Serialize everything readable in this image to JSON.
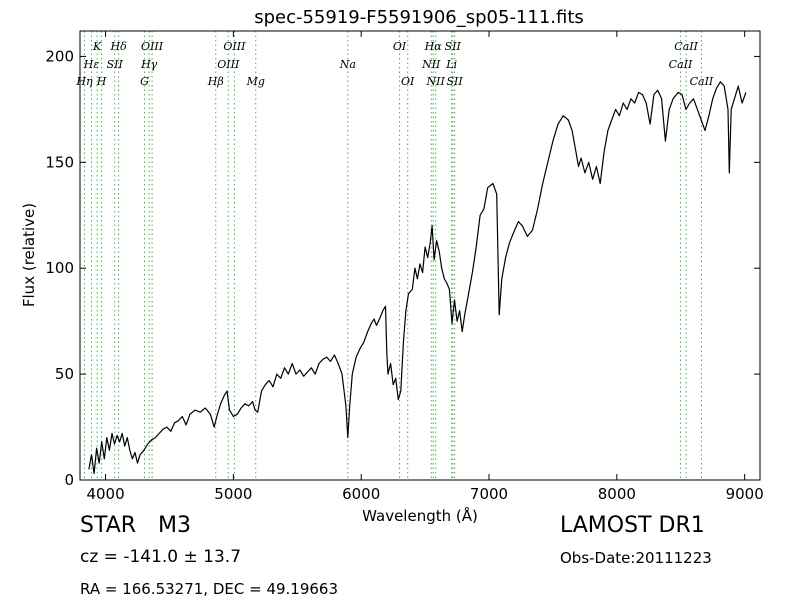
{
  "chart_data": {
    "type": "line",
    "title": "spec-55919-F5591906_sp05-111.fits",
    "xlabel": "Wavelength (Å)",
    "ylabel": "Flux (relative)",
    "xlim": [
      3800,
      9120
    ],
    "ylim": [
      0,
      212
    ],
    "grid": false,
    "x_ticks": [
      4000,
      5000,
      6000,
      7000,
      8000,
      9000
    ],
    "y_ticks": [
      0,
      50,
      100,
      150,
      200
    ],
    "series": [
      {
        "color": "#000000",
        "points": [
          [
            3870,
            5
          ],
          [
            3890,
            12
          ],
          [
            3910,
            3
          ],
          [
            3930,
            15
          ],
          [
            3950,
            8
          ],
          [
            3970,
            18
          ],
          [
            3990,
            10
          ],
          [
            4010,
            20
          ],
          [
            4030,
            14
          ],
          [
            4050,
            22
          ],
          [
            4070,
            17
          ],
          [
            4090,
            21
          ],
          [
            4110,
            18
          ],
          [
            4130,
            22
          ],
          [
            4150,
            16
          ],
          [
            4170,
            20
          ],
          [
            4190,
            14
          ],
          [
            4210,
            10
          ],
          [
            4230,
            13
          ],
          [
            4250,
            8
          ],
          [
            4270,
            12
          ],
          [
            4300,
            14
          ],
          [
            4330,
            17
          ],
          [
            4360,
            19
          ],
          [
            4390,
            20
          ],
          [
            4420,
            22
          ],
          [
            4450,
            24
          ],
          [
            4480,
            25
          ],
          [
            4510,
            23
          ],
          [
            4540,
            27
          ],
          [
            4570,
            28
          ],
          [
            4600,
            30
          ],
          [
            4630,
            26
          ],
          [
            4660,
            31
          ],
          [
            4700,
            33
          ],
          [
            4740,
            32
          ],
          [
            4780,
            34
          ],
          [
            4820,
            31
          ],
          [
            4850,
            25
          ],
          [
            4870,
            30
          ],
          [
            4900,
            36
          ],
          [
            4930,
            40
          ],
          [
            4950,
            42
          ],
          [
            4970,
            33
          ],
          [
            5000,
            30
          ],
          [
            5030,
            31
          ],
          [
            5060,
            34
          ],
          [
            5090,
            36
          ],
          [
            5120,
            35
          ],
          [
            5150,
            37
          ],
          [
            5170,
            33
          ],
          [
            5190,
            32
          ],
          [
            5220,
            42
          ],
          [
            5250,
            45
          ],
          [
            5280,
            47
          ],
          [
            5310,
            44
          ],
          [
            5340,
            50
          ],
          [
            5370,
            48
          ],
          [
            5400,
            53
          ],
          [
            5430,
            50
          ],
          [
            5460,
            55
          ],
          [
            5490,
            50
          ],
          [
            5520,
            52
          ],
          [
            5550,
            49
          ],
          [
            5580,
            51
          ],
          [
            5610,
            53
          ],
          [
            5640,
            50
          ],
          [
            5670,
            55
          ],
          [
            5700,
            57
          ],
          [
            5730,
            58
          ],
          [
            5760,
            56
          ],
          [
            5790,
            59
          ],
          [
            5820,
            55
          ],
          [
            5850,
            50
          ],
          [
            5880,
            35
          ],
          [
            5895,
            20
          ],
          [
            5910,
            35
          ],
          [
            5930,
            50
          ],
          [
            5960,
            58
          ],
          [
            5990,
            62
          ],
          [
            6020,
            65
          ],
          [
            6050,
            70
          ],
          [
            6080,
            74
          ],
          [
            6100,
            76
          ],
          [
            6120,
            73
          ],
          [
            6150,
            77
          ],
          [
            6170,
            80
          ],
          [
            6190,
            82
          ],
          [
            6200,
            60
          ],
          [
            6210,
            50
          ],
          [
            6230,
            55
          ],
          [
            6250,
            45
          ],
          [
            6270,
            48
          ],
          [
            6290,
            38
          ],
          [
            6310,
            42
          ],
          [
            6330,
            65
          ],
          [
            6350,
            80
          ],
          [
            6370,
            88
          ],
          [
            6400,
            90
          ],
          [
            6420,
            100
          ],
          [
            6440,
            95
          ],
          [
            6460,
            102
          ],
          [
            6480,
            98
          ],
          [
            6500,
            110
          ],
          [
            6520,
            105
          ],
          [
            6540,
            112
          ],
          [
            6555,
            120
          ],
          [
            6570,
            104
          ],
          [
            6590,
            113
          ],
          [
            6610,
            108
          ],
          [
            6630,
            100
          ],
          [
            6650,
            95
          ],
          [
            6670,
            93
          ],
          [
            6690,
            90
          ],
          [
            6710,
            74
          ],
          [
            6730,
            85
          ],
          [
            6750,
            75
          ],
          [
            6770,
            80
          ],
          [
            6790,
            70
          ],
          [
            6810,
            78
          ],
          [
            6840,
            88
          ],
          [
            6870,
            98
          ],
          [
            6900,
            110
          ],
          [
            6930,
            125
          ],
          [
            6960,
            128
          ],
          [
            6990,
            138
          ],
          [
            7030,
            140
          ],
          [
            7060,
            135
          ],
          [
            7080,
            78
          ],
          [
            7100,
            95
          ],
          [
            7130,
            105
          ],
          [
            7160,
            112
          ],
          [
            7200,
            118
          ],
          [
            7230,
            122
          ],
          [
            7260,
            120
          ],
          [
            7300,
            115
          ],
          [
            7340,
            118
          ],
          [
            7380,
            128
          ],
          [
            7420,
            140
          ],
          [
            7460,
            150
          ],
          [
            7500,
            160
          ],
          [
            7540,
            168
          ],
          [
            7580,
            172
          ],
          [
            7620,
            170
          ],
          [
            7650,
            165
          ],
          [
            7680,
            155
          ],
          [
            7700,
            148
          ],
          [
            7720,
            152
          ],
          [
            7750,
            145
          ],
          [
            7780,
            150
          ],
          [
            7810,
            142
          ],
          [
            7840,
            148
          ],
          [
            7870,
            140
          ],
          [
            7900,
            155
          ],
          [
            7930,
            165
          ],
          [
            7960,
            170
          ],
          [
            7990,
            175
          ],
          [
            8020,
            172
          ],
          [
            8050,
            178
          ],
          [
            8080,
            175
          ],
          [
            8110,
            180
          ],
          [
            8140,
            178
          ],
          [
            8170,
            183
          ],
          [
            8200,
            182
          ],
          [
            8230,
            178
          ],
          [
            8260,
            168
          ],
          [
            8290,
            182
          ],
          [
            8320,
            184
          ],
          [
            8350,
            180
          ],
          [
            8380,
            160
          ],
          [
            8410,
            175
          ],
          [
            8440,
            180
          ],
          [
            8480,
            183
          ],
          [
            8510,
            182
          ],
          [
            8540,
            175
          ],
          [
            8570,
            178
          ],
          [
            8600,
            180
          ],
          [
            8630,
            175
          ],
          [
            8660,
            170
          ],
          [
            8690,
            165
          ],
          [
            8720,
            172
          ],
          [
            8750,
            180
          ],
          [
            8780,
            185
          ],
          [
            8810,
            188
          ],
          [
            8840,
            186
          ],
          [
            8870,
            175
          ],
          [
            8880,
            145
          ],
          [
            8895,
            175
          ],
          [
            8920,
            180
          ],
          [
            8950,
            186
          ],
          [
            8980,
            178
          ],
          [
            9010,
            183
          ]
        ]
      }
    ],
    "lines": [
      {
        "label": "Hη",
        "x": 3835,
        "row": 3
      },
      {
        "label": "Hε",
        "x": 3890,
        "row": 2
      },
      {
        "label": "K",
        "x": 3934,
        "row": 1
      },
      {
        "label": "H",
        "x": 3969,
        "row": 3
      },
      {
        "label": "SII",
        "x": 4072,
        "row": 2
      },
      {
        "label": "Hδ",
        "x": 4102,
        "row": 1
      },
      {
        "label": "G",
        "x": 4305,
        "row": 3
      },
      {
        "label": "Hγ",
        "x": 4341,
        "row": 2
      },
      {
        "label": "OIII",
        "x": 4364,
        "row": 1
      },
      {
        "label": "Hβ",
        "x": 4862,
        "row": 3
      },
      {
        "label": "OIII",
        "x": 4960,
        "row": 2
      },
      {
        "label": "OIII",
        "x": 5008,
        "row": 1
      },
      {
        "label": "Mg",
        "x": 5175,
        "row": 3
      },
      {
        "label": "Na",
        "x": 5895,
        "row": 2
      },
      {
        "label": "OI",
        "x": 6300,
        "row": 1
      },
      {
        "label": "OI",
        "x": 6364,
        "row": 3
      },
      {
        "label": "NII",
        "x": 6548,
        "row": 2
      },
      {
        "label": "Hα",
        "x": 6563,
        "row": 1
      },
      {
        "label": "NII",
        "x": 6583,
        "row": 3
      },
      {
        "label": "Li",
        "x": 6708,
        "row": 2
      },
      {
        "label": "SII",
        "x": 6716,
        "row": 1
      },
      {
        "label": "SII",
        "x": 6731,
        "row": 3
      },
      {
        "label": "CaII",
        "x": 8498,
        "row": 2
      },
      {
        "label": "CaII",
        "x": 8542,
        "row": 1
      },
      {
        "label": "CaII",
        "x": 8662,
        "row": 3
      }
    ]
  },
  "info": {
    "class_label": "STAR",
    "subclass_label": "M3",
    "survey": "LAMOST DR1",
    "cz_text": "cz = -141.0",
    "cz_err": "± 13.7",
    "obs_date": "Obs-Date:20111223",
    "radec": "RA = 166.53271, DEC = 49.19663"
  }
}
